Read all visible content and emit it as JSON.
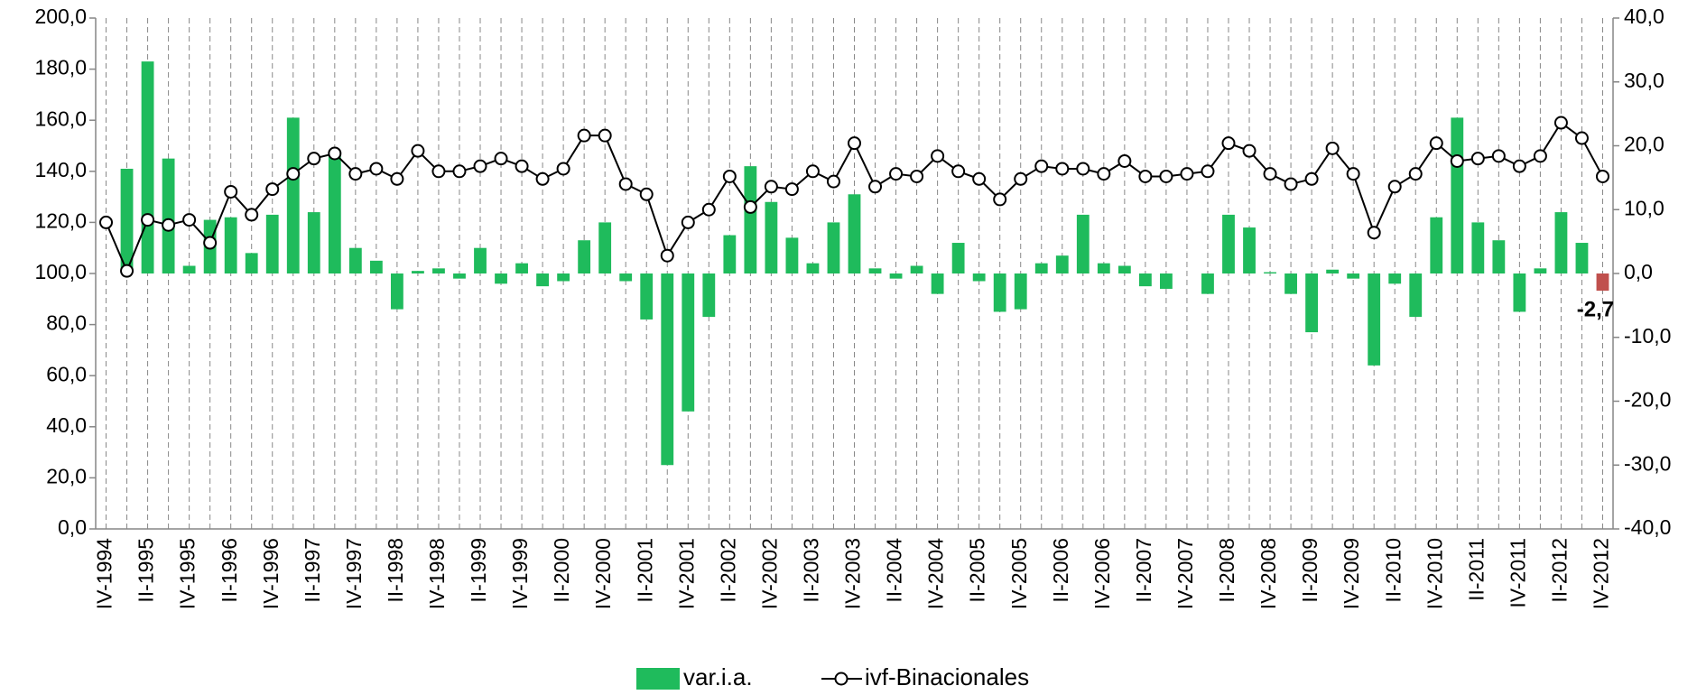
{
  "chart_data": {
    "type": "bar-line",
    "categories": [
      "IV-1994",
      null,
      "II-1995",
      null,
      "IV-1995",
      null,
      "II-1996",
      null,
      "IV-1996",
      null,
      "II-1997",
      null,
      "IV-1997",
      null,
      "II-1998",
      null,
      "IV-1998",
      null,
      "II-1999",
      null,
      "IV-1999",
      null,
      "II-2000",
      null,
      "IV-2000",
      null,
      "II-2001",
      null,
      "IV-2001",
      null,
      "II-2002",
      null,
      "IV-2002",
      null,
      "II-2003",
      null,
      "IV-2003",
      null,
      "II-2004",
      null,
      "IV-2004",
      null,
      "II-2005",
      null,
      "IV-2005",
      null,
      "II-2006",
      null,
      "IV-2006",
      null,
      "II-2007",
      null,
      "IV-2007",
      null,
      "II-2008",
      null,
      "IV-2008",
      null,
      "II-2009",
      null,
      "IV-2009",
      null,
      "II-2010",
      null,
      "IV-2010",
      null,
      "II-2011",
      null,
      "IV-2011",
      null,
      "II-2012",
      null,
      "IV-2012"
    ],
    "series": [
      {
        "name": "var.i.a.",
        "type": "bar",
        "axis": "y2",
        "color": "#1fbb5c",
        "highlight_color": "#c0504d",
        "values": [
          null,
          16.4,
          33.2,
          18,
          1.2,
          8.4,
          8.8,
          3.2,
          9.2,
          24.4,
          9.6,
          18.4,
          4,
          2,
          -5.6,
          0.4,
          0.8,
          -0.8,
          4,
          -1.6,
          1.6,
          -2,
          -1.2,
          5.2,
          8,
          -1.2,
          -7.2,
          -30,
          -21.6,
          -6.8,
          6,
          16.8,
          11.2,
          5.6,
          1.6,
          8,
          12.4,
          0.8,
          -0.8,
          1.2,
          -3.2,
          4.8,
          -1.2,
          -6,
          -5.6,
          1.6,
          2.8,
          9.2,
          1.6,
          1.2,
          -2,
          -2.4,
          0,
          -3.2,
          9.2,
          7.2,
          0.2,
          -3.2,
          -9.2,
          0.6,
          -0.8,
          -14.4,
          -1.6,
          -6.8,
          8.8,
          24.4,
          8,
          5.2,
          -6,
          0.8,
          9.6,
          4.8,
          -2.7
        ],
        "value_labels": [
          null,
          null,
          null,
          null,
          null,
          null,
          null,
          null,
          null,
          null,
          null,
          null,
          null,
          null,
          null,
          null,
          null,
          null,
          null,
          null,
          null,
          null,
          null,
          null,
          null,
          null,
          null,
          null,
          null,
          null,
          null,
          null,
          null,
          null,
          null,
          null,
          null,
          null,
          null,
          null,
          null,
          null,
          null,
          null,
          null,
          null,
          null,
          null,
          null,
          null,
          null,
          null,
          null,
          null,
          null,
          null,
          null,
          null,
          null,
          null,
          null,
          null,
          null,
          null,
          null,
          null,
          null,
          null,
          null,
          null,
          null,
          null,
          "-2,7"
        ]
      },
      {
        "name": "ivf-Binacionales",
        "type": "line",
        "axis": "y",
        "color": "#000000",
        "values": [
          120,
          101,
          121,
          119,
          121,
          112,
          132,
          123,
          133,
          139,
          145,
          147,
          139,
          141,
          137,
          148,
          140,
          140,
          142,
          145,
          142,
          137,
          141,
          154,
          154,
          135,
          131,
          107,
          120,
          125,
          138,
          126,
          134,
          133,
          140,
          136,
          151,
          134,
          139,
          138,
          146,
          140,
          137,
          129,
          137,
          142,
          141,
          141,
          139,
          144,
          138,
          138,
          139,
          140,
          151,
          148,
          139,
          135,
          137,
          149,
          139,
          116,
          134,
          139,
          151,
          144,
          145,
          146,
          142,
          146,
          159,
          153,
          138
        ]
      }
    ],
    "ylim": [
      0,
      200
    ],
    "yticks": [
      {
        "value": 0,
        "label": "0,0"
      },
      {
        "value": 20,
        "label": "20,0"
      },
      {
        "value": 40,
        "label": "40,0"
      },
      {
        "value": 60,
        "label": "60,0"
      },
      {
        "value": 80,
        "label": "80,0"
      },
      {
        "value": 100,
        "label": "100,0"
      },
      {
        "value": 120,
        "label": "120,0"
      },
      {
        "value": 140,
        "label": "140,0"
      },
      {
        "value": 160,
        "label": "160,0"
      },
      {
        "value": 180,
        "label": "180,0"
      },
      {
        "value": 200,
        "label": "200,0"
      }
    ],
    "y2lim": [
      -40,
      40
    ],
    "y2ticks": [
      {
        "value": -40,
        "label": "-40,0"
      },
      {
        "value": -30,
        "label": "-30,0"
      },
      {
        "value": -20,
        "label": "-20,0"
      },
      {
        "value": -10,
        "label": "-10,0"
      },
      {
        "value": 0,
        "label": "0,0"
      },
      {
        "value": 10,
        "label": "10,0"
      },
      {
        "value": 20,
        "label": "20,0"
      },
      {
        "value": 30,
        "label": "30,0"
      },
      {
        "value": 40,
        "label": "40,0"
      }
    ],
    "x_grid": true,
    "legend": "bottom"
  }
}
